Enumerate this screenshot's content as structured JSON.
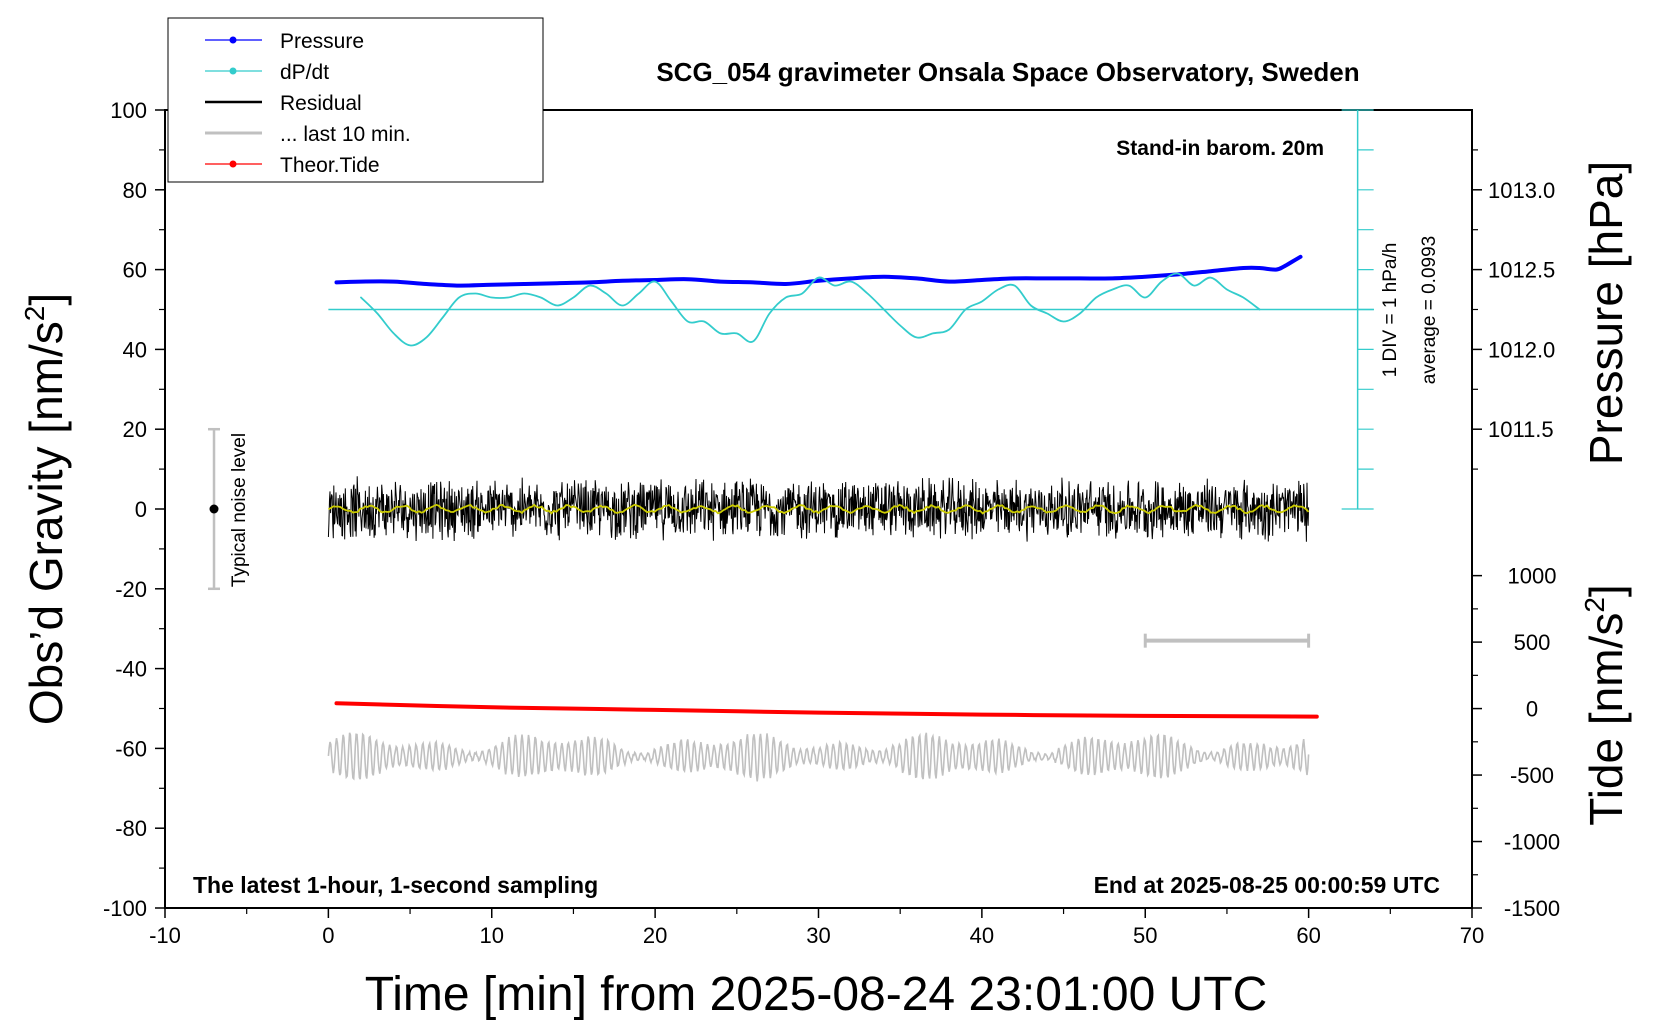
{
  "chart_data": {
    "type": "line",
    "title": "SCG_054 gravimeter Onsala Space Observatory, Sweden",
    "xlabel": "Time [min] from 2025-08-24 23:01:00 UTC",
    "ylabel_left": "Obs’d Gravity [nm/s",
    "ylabel_left_sup": "2",
    "ylabel_left_end": "]",
    "ylabel_right_pressure": "Pressure [hPa]",
    "ylabel_right_tide": "Tide [nm/s",
    "ylabel_right_tide_sup": "2",
    "ylabel_right_tide_end": "]",
    "xlim": [
      -10,
      70
    ],
    "ylim": [
      -100,
      100
    ],
    "x_ticks": [
      "-10",
      "0",
      "10",
      "20",
      "30",
      "40",
      "50",
      "60",
      "70"
    ],
    "y_ticks": [
      "100",
      "80",
      "60",
      "40",
      "20",
      "0",
      "-20",
      "-40",
      "-60",
      "-80",
      "-100"
    ],
    "pressure_ticks": [
      "1013.0",
      "1012.5",
      "1012.0",
      "1011.5"
    ],
    "tide_ticks": [
      "1000",
      "500",
      "0",
      "-500",
      "-1000",
      "-1500"
    ],
    "pressure_scale": {
      "values": [
        1013.0,
        1012.5,
        1012.0,
        1011.5
      ],
      "gravity_equiv": [
        80,
        60,
        40,
        20
      ]
    },
    "tide_scale": {
      "values": [
        1000,
        -1500
      ],
      "gravity_equiv": [
        -16.7,
        -100
      ]
    },
    "annotations": {
      "stand_in": "Stand-in barom. 20m",
      "latest": "The latest 1-hour, 1-second sampling",
      "end_at": "End at 2025-08-25 00:00:59 UTC",
      "div": "1 DIV = 1 hPa/h",
      "average": "average = 0.0993",
      "noise": "Typical noise level"
    },
    "legend": [
      {
        "name": "Pressure",
        "color": "#0000ff",
        "marker": true
      },
      {
        "name": "dP/dt",
        "color": "#33cccc",
        "marker": true
      },
      {
        "name": "Residual",
        "color": "#000000",
        "marker": false
      },
      {
        "name": "... last 10 min.",
        "color": "#c0c0c0",
        "marker": false
      },
      {
        "name": "Theor.Tide",
        "color": "#ff0000",
        "marker": true
      }
    ],
    "series": [
      {
        "name": "Pressure",
        "color": "#0000ff",
        "axis": "pressure_hPa",
        "x": [
          0.5,
          2,
          4,
          6,
          8,
          10,
          12,
          14,
          16,
          18,
          20,
          22,
          24,
          26,
          28,
          30,
          32,
          34,
          36,
          38,
          40,
          42,
          44,
          46,
          48,
          50,
          52,
          54,
          56,
          57,
          58,
          58.5,
          59,
          59.5
        ],
        "y": [
          1012.42,
          1012.425,
          1012.425,
          1012.41,
          1012.4,
          1012.405,
          1012.41,
          1012.415,
          1012.42,
          1012.43,
          1012.435,
          1012.44,
          1012.425,
          1012.42,
          1012.41,
          1012.43,
          1012.445,
          1012.455,
          1012.445,
          1012.425,
          1012.435,
          1012.445,
          1012.445,
          1012.445,
          1012.445,
          1012.455,
          1012.47,
          1012.49,
          1012.51,
          1012.51,
          1012.5,
          1012.52,
          1012.55,
          1012.58
        ]
      },
      {
        "name": "dP/dt",
        "color": "#33cccc",
        "axis": "gravity_units",
        "x": [
          2,
          3,
          4,
          5,
          6,
          7,
          8,
          9,
          10,
          11,
          12,
          13,
          14,
          15,
          16,
          17,
          18,
          19,
          20,
          21,
          22,
          23,
          24,
          25,
          26,
          27,
          28,
          29,
          30,
          31,
          32,
          33,
          34,
          35,
          36,
          37,
          38,
          39,
          40,
          41,
          42,
          43,
          44,
          45,
          46,
          47,
          48,
          49,
          50,
          51,
          52,
          53,
          54,
          55,
          56,
          57
        ],
        "y": [
          53,
          49,
          44,
          41,
          43,
          48,
          53,
          54,
          53,
          53,
          54,
          53,
          51,
          53,
          56,
          54,
          51,
          54,
          57,
          52,
          47,
          47,
          44,
          44,
          42,
          49,
          53,
          54,
          58,
          56,
          57,
          54,
          50,
          46,
          43,
          44,
          45,
          50,
          52,
          55,
          56,
          51,
          49,
          47,
          49,
          53,
          55,
          56,
          53,
          57,
          59,
          56,
          58,
          55,
          53,
          50
        ]
      },
      {
        "name": "Theor.Tide",
        "color": "#ff0000",
        "axis": "tide_nm_s2",
        "x": [
          0.5,
          10,
          20,
          30,
          40,
          50,
          60.5
        ],
        "y": [
          40,
          10,
          -10,
          -30,
          -45,
          -55,
          -60
        ]
      }
    ],
    "residual": {
      "name": "Residual",
      "color": "#000000",
      "x_range": [
        0,
        60
      ],
      "center": 0,
      "amplitude": 7
    },
    "residual_smooth": {
      "color": "#cccc00"
    },
    "last_10_min_trace": {
      "name": "... last 10 min.",
      "color": "#c0c0c0",
      "x_range": [
        0,
        60
      ],
      "center": -62,
      "amplitude": 6
    },
    "noise_bar": {
      "x": -7,
      "y_range": [
        -20,
        20
      ]
    },
    "tide_scale_bar": {
      "x_range": [
        50,
        60
      ],
      "y": -33
    },
    "dpdt_axis": {
      "x": 63,
      "baseline": 50,
      "range": [
        0,
        100
      ]
    }
  }
}
